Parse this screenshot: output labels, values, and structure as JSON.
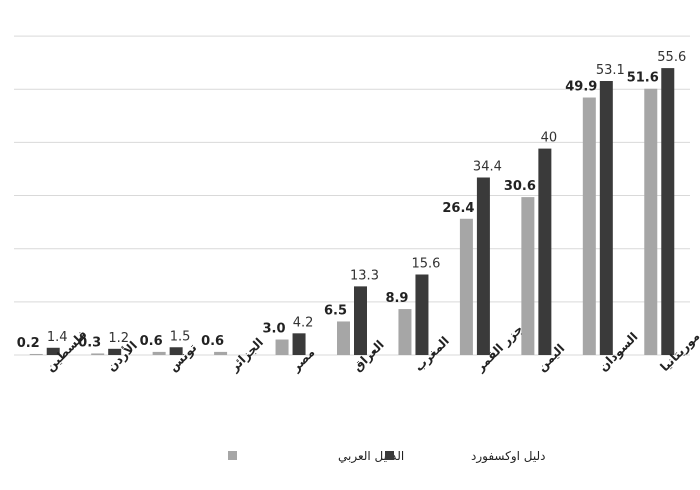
{
  "chart_data": {
    "type": "bar",
    "categories": [
      "فلسطين",
      "الأردن",
      "تونس",
      "الجزائر",
      "مصر",
      "العراق",
      "المغرب",
      "جزر القمر",
      "اليمن",
      "السودان",
      "موريتانيا"
    ],
    "series": [
      {
        "name": "الدليل العربي",
        "color": "#a6a6a6",
        "values": [
          0.2,
          0.3,
          0.6,
          0.6,
          3.0,
          6.5,
          8.9,
          26.4,
          30.6,
          49.9,
          51.6
        ],
        "labels": [
          "0.2",
          "0.3",
          "0.6",
          "0.6",
          "3.0",
          "6.5",
          "8.9",
          "26.4",
          "30.6",
          "49.9",
          "51.6"
        ]
      },
      {
        "name": "دليل اوكسفورد",
        "color": "#3a3a3a",
        "values": [
          1.4,
          1.2,
          1.5,
          null,
          4.2,
          13.3,
          15.6,
          34.4,
          40,
          53.1,
          55.6
        ],
        "labels": [
          "1.4",
          "1.2",
          "1.5",
          "",
          "4.2",
          "13.3",
          "15.6",
          "34.4",
          "40",
          "53.1",
          "55.6"
        ]
      }
    ],
    "ylim": [
      0,
      62
    ],
    "grid": true,
    "legend_position": "bottom"
  }
}
